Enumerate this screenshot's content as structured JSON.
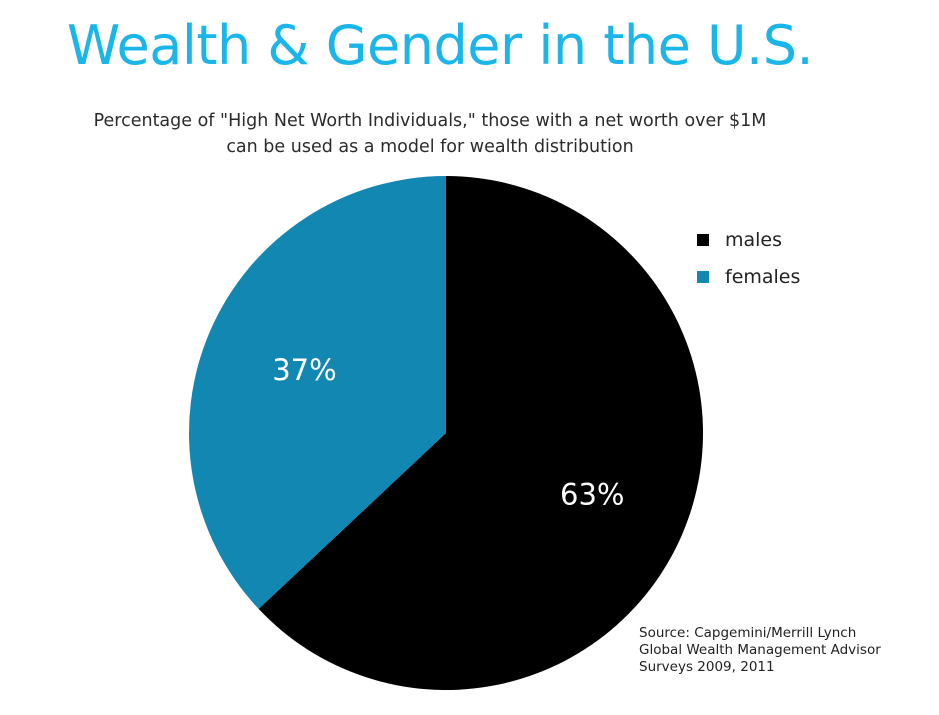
{
  "colors": {
    "title": "#1ab6ea"
  },
  "chart_data": {
    "type": "pie",
    "title": "Wealth & Gender in the U.S.",
    "subtitle_lines": [
      "Percentage of \"High Net Worth Individuals,\" those with a net worth over $1M",
      "can be used as a model for wealth distribution"
    ],
    "categories": [
      "males",
      "females"
    ],
    "values": [
      63,
      37
    ],
    "data_labels": [
      "63%",
      "37%"
    ],
    "colors": [
      "#000000",
      "#1287b2"
    ],
    "legend_position": "top-right",
    "source_lines": [
      "Source: Capgemini/Merrill Lynch",
      "Global Wealth Management Advisor",
      "Surveys 2009, 2011"
    ]
  }
}
